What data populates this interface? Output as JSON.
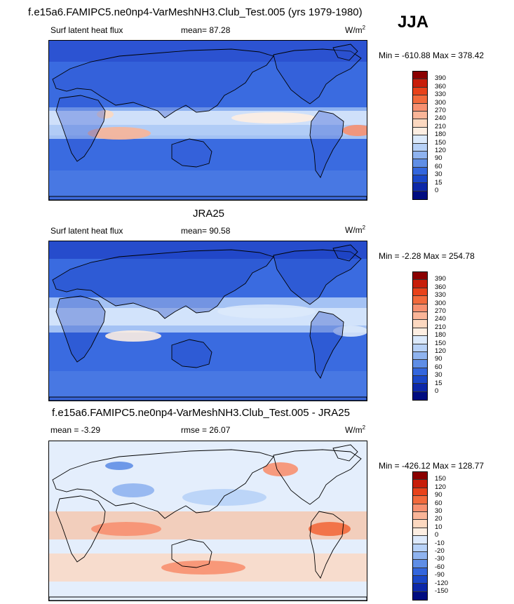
{
  "title": "f.e15a6.FAMIPC5.ne0np4-VarMeshNH3.Club_Test.005 (yrs 1979-1980)",
  "season": "JJA",
  "panels": [
    {
      "heading": "",
      "left": "Surf latent heat flux",
      "center": "mean=  87.28",
      "units": "W/m",
      "units_sup": "2",
      "minmax": "Min = -610.88 Max = 378.42",
      "levels": [
        "390",
        "360",
        "330",
        "300",
        "270",
        "240",
        "210",
        "180",
        "150",
        "120",
        "90",
        "60",
        "30",
        "15",
        "0"
      ],
      "colors": [
        "#8b0000",
        "#c81e0a",
        "#e8421a",
        "#f26a3c",
        "#f79070",
        "#fab598",
        "#fcd8c0",
        "#fdeee2",
        "#dbe9fb",
        "#b7d1f7",
        "#8fb3ef",
        "#5f8ee6",
        "#3366dd",
        "#1a47c8",
        "#0d28a8",
        "#000c80"
      ],
      "map_tone": "model"
    },
    {
      "heading": "JRA25",
      "left": "Surf latent heat flux",
      "center": "mean=  90.58",
      "units": "W/m",
      "units_sup": "2",
      "minmax": "Min =  -2.28 Max = 254.78",
      "levels": [
        "390",
        "360",
        "330",
        "300",
        "270",
        "240",
        "210",
        "180",
        "150",
        "120",
        "90",
        "60",
        "30",
        "15",
        "0"
      ],
      "colors": [
        "#8b0000",
        "#c81e0a",
        "#e8421a",
        "#f26a3c",
        "#f79070",
        "#fab598",
        "#fcd8c0",
        "#fdeee2",
        "#dbe9fb",
        "#b7d1f7",
        "#8fb3ef",
        "#5f8ee6",
        "#3366dd",
        "#1a47c8",
        "#0d28a8",
        "#000c80"
      ],
      "map_tone": "obs"
    },
    {
      "heading": "f.e15a6.FAMIPC5.ne0np4-VarMeshNH3.Club_Test.005 - JRA25",
      "left": "mean =  -3.29",
      "center": "rmse =  26.07",
      "units": "W/m",
      "units_sup": "2",
      "minmax": "Min = -426.12 Max = 128.77",
      "levels": [
        "150",
        "120",
        "90",
        "60",
        "30",
        "20",
        "10",
        "0",
        "-10",
        "-20",
        "-30",
        "-60",
        "-90",
        "-120",
        "-150"
      ],
      "colors": [
        "#8b0000",
        "#c81e0a",
        "#e8421a",
        "#f26a3c",
        "#f79070",
        "#fab598",
        "#fcd8c0",
        "#fdeee2",
        "#dde9fb",
        "#b7d1f7",
        "#8fb3ef",
        "#5f8ee6",
        "#3366dd",
        "#1a47c8",
        "#0d28a8",
        "#000c80"
      ],
      "map_tone": "diff"
    }
  ]
}
